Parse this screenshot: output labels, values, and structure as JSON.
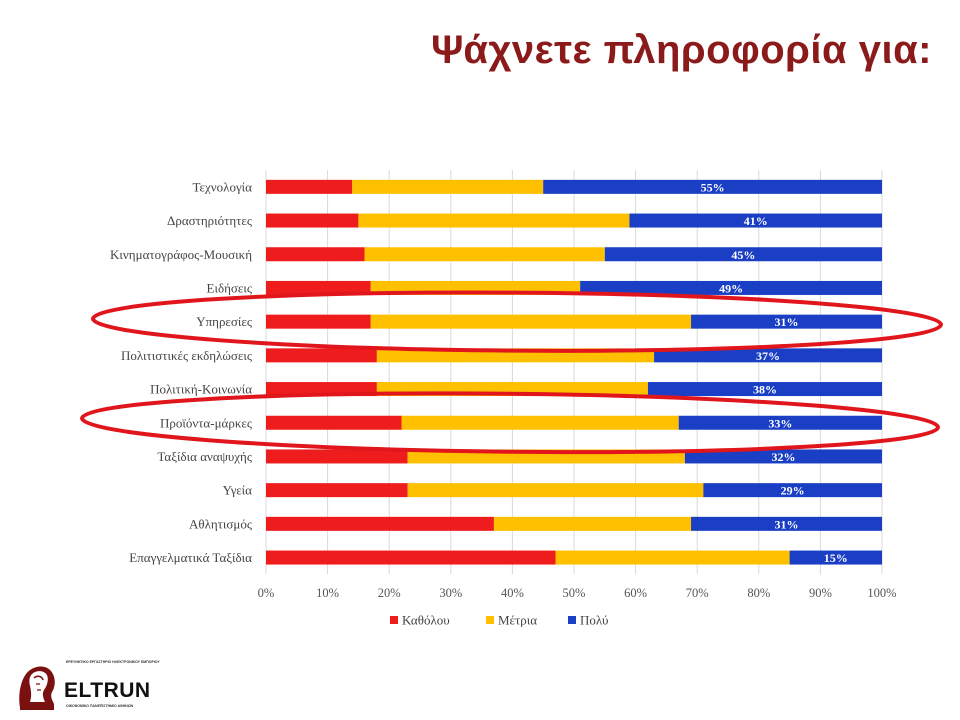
{
  "title": "Ψάχνετε πληροφορία για:",
  "colors": {
    "title": "#8b1a1a",
    "kathololou": "#ee1c1c",
    "metria": "#ffc000",
    "poly": "#1a3fc4",
    "highlight": "#e0161c"
  },
  "chart_data": {
    "type": "bar",
    "orientation": "horizontal",
    "stacked": "percent",
    "categories": [
      "Τεχνολογία",
      "Δραστηριότητες",
      "Κινηματογράφος-Μουσική",
      "Ειδήσεις",
      "Υπηρεσίες",
      "Πολιτιστικές εκδηλώσεις",
      "Πολιτική-Κοινωνία",
      "Προϊόντα-μάρκες",
      "Ταξίδια αναψυχής",
      "Υγεία",
      "Αθλητισμός",
      "Επαγγελματικά Ταξίδια"
    ],
    "series": [
      {
        "name": "Καθόλου",
        "color": "#ee1c1c",
        "values": [
          14,
          15,
          16,
          17,
          17,
          18,
          18,
          22,
          23,
          23,
          37,
          47
        ]
      },
      {
        "name": "Μέτρια",
        "color": "#ffc000",
        "values": [
          31,
          44,
          39,
          34,
          52,
          45,
          44,
          45,
          45,
          48,
          32,
          38
        ]
      },
      {
        "name": "Πολύ",
        "color": "#1a3fc4",
        "values": [
          55,
          41,
          45,
          49,
          31,
          37,
          38,
          33,
          32,
          29,
          31,
          15
        ]
      }
    ],
    "data_labels": [
      "55%",
      "41%",
      "45%",
      "49%",
      "31%",
      "37%",
      "38%",
      "33%",
      "32%",
      "29%",
      "31%",
      "15%"
    ],
    "x_ticks": [
      "0%",
      "10%",
      "20%",
      "30%",
      "40%",
      "50%",
      "60%",
      "70%",
      "80%",
      "90%",
      "100%"
    ],
    "xlim": [
      0,
      100
    ],
    "legend_position": "bottom",
    "highlighted_categories": [
      "Υπηρεσίες",
      "Προϊόντα-μάρκες"
    ]
  },
  "logo": {
    "text": "ELTRUN",
    "tagline": "ΕΡΕΥΝΗΤΙΚΟ ΕΡΓΑΣΤΗΡΙΟ ΗΛΕΚΤΡΟΝΙΚΟΥ ΕΜΠΟΡΙΟΥ",
    "subtitle": "ΟΙΚΟΝΟΜΙΚΟ ΠΑΝΕΠΙΣΤΗΜΙΟ ΑΘΗΝΩΝ"
  }
}
